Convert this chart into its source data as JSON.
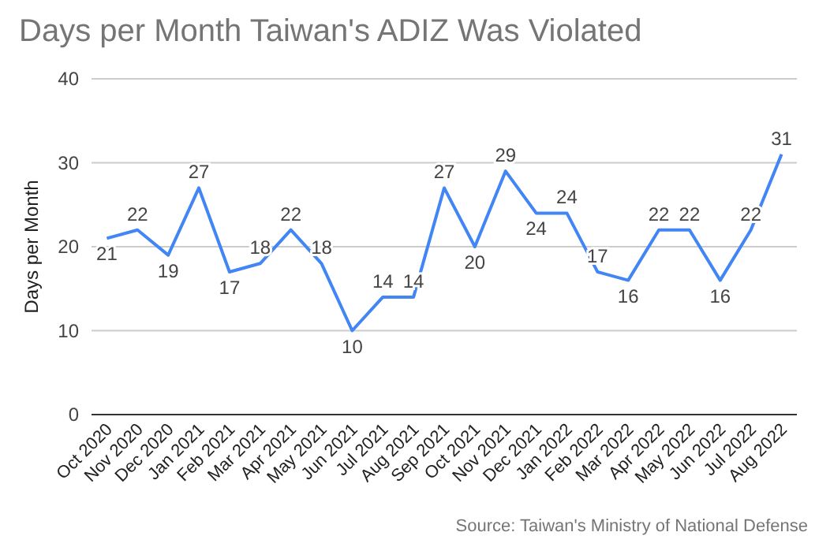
{
  "chart_data": {
    "type": "line",
    "title": "Days per Month Taiwan's ADIZ Was Violated",
    "ylabel": "Days per Month",
    "categories": [
      "Oct 2020",
      "Nov 2020",
      "Dec 2020",
      "Jan 2021",
      "Feb 2021",
      "Mar 2021",
      "Apr 2021",
      "May 2021",
      "Jun 2021",
      "Jul 2021",
      "Aug 2021",
      "Sep 2021",
      "Oct 2021",
      "Nov 2021",
      "Dec 2021",
      "Jan 2022",
      "Feb 2022",
      "Mar 2022",
      "Apr 2022",
      "May 2022",
      "Jun 2022",
      "Jul 2022",
      "Aug 2022"
    ],
    "series": [
      {
        "color": "#4285f4",
        "values": [
          21,
          22,
          19,
          27,
          17,
          18,
          22,
          18,
          10,
          14,
          14,
          27,
          20,
          29,
          24,
          24,
          17,
          16,
          22,
          22,
          16,
          22,
          31
        ]
      }
    ],
    "ylim": [
      0,
      40
    ],
    "yticks": [
      0,
      10,
      20,
      30,
      40
    ],
    "grid": "y",
    "data_labels": true,
    "marker": "none",
    "line_style": "solid",
    "annotations": [
      "Source: Taiwan's Ministry of National Defense"
    ]
  }
}
